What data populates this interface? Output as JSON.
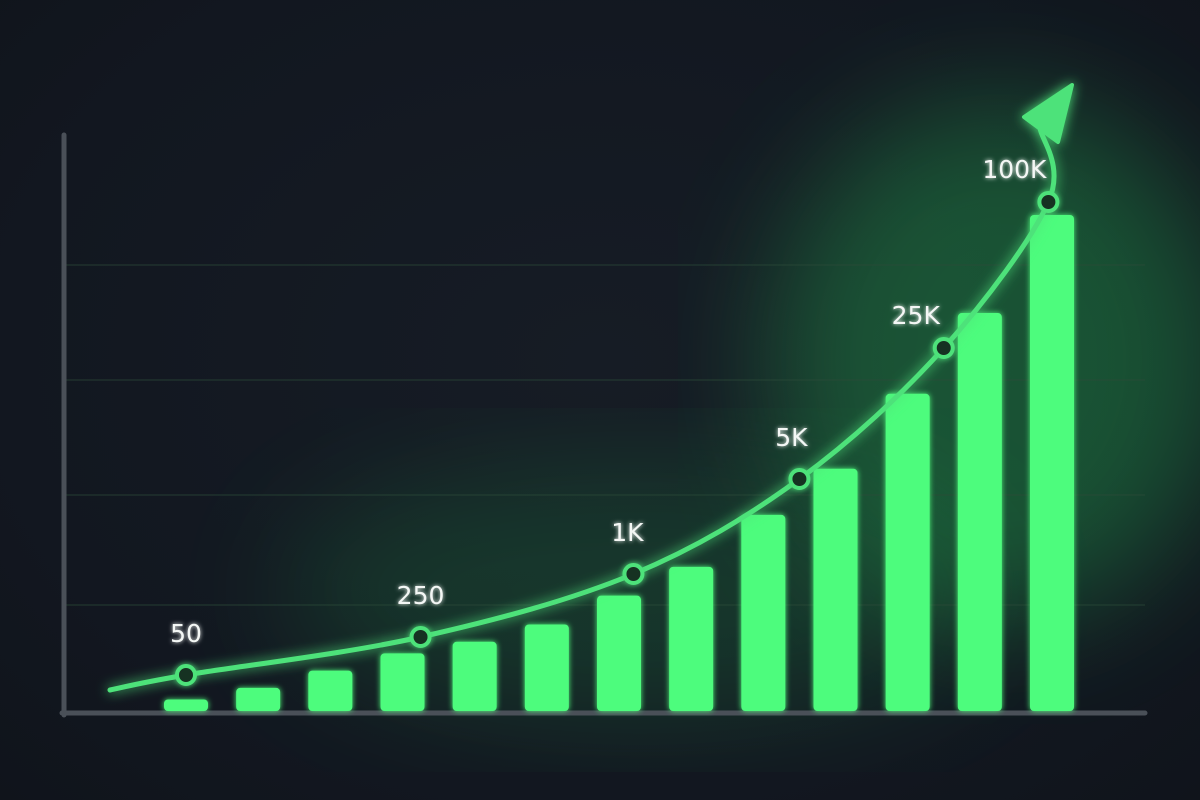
{
  "chart_data": {
    "type": "bar",
    "title": "",
    "xlabel": "",
    "ylabel": "",
    "grid": true,
    "bar_values": [
      2,
      4,
      7,
      10,
      12,
      15,
      20,
      25,
      34,
      42,
      55,
      69,
      86
    ],
    "trend_line": {
      "points": [
        {
          "x": 0,
          "label": "50"
        },
        {
          "x": 3.25,
          "label": "250"
        },
        {
          "x": 6.2,
          "label": "1K"
        },
        {
          "x": 8.5,
          "label": "5K"
        },
        {
          "x": 10.5,
          "label": "25K"
        },
        {
          "x": 11.95,
          "label": "100K"
        }
      ],
      "arrow": true
    },
    "colors": {
      "bar": "#4efc7d",
      "line": "#4ee27a",
      "glow": "#2be866",
      "grid": "#2b4a38",
      "axis": "#4a5058",
      "background": "#131820"
    }
  }
}
